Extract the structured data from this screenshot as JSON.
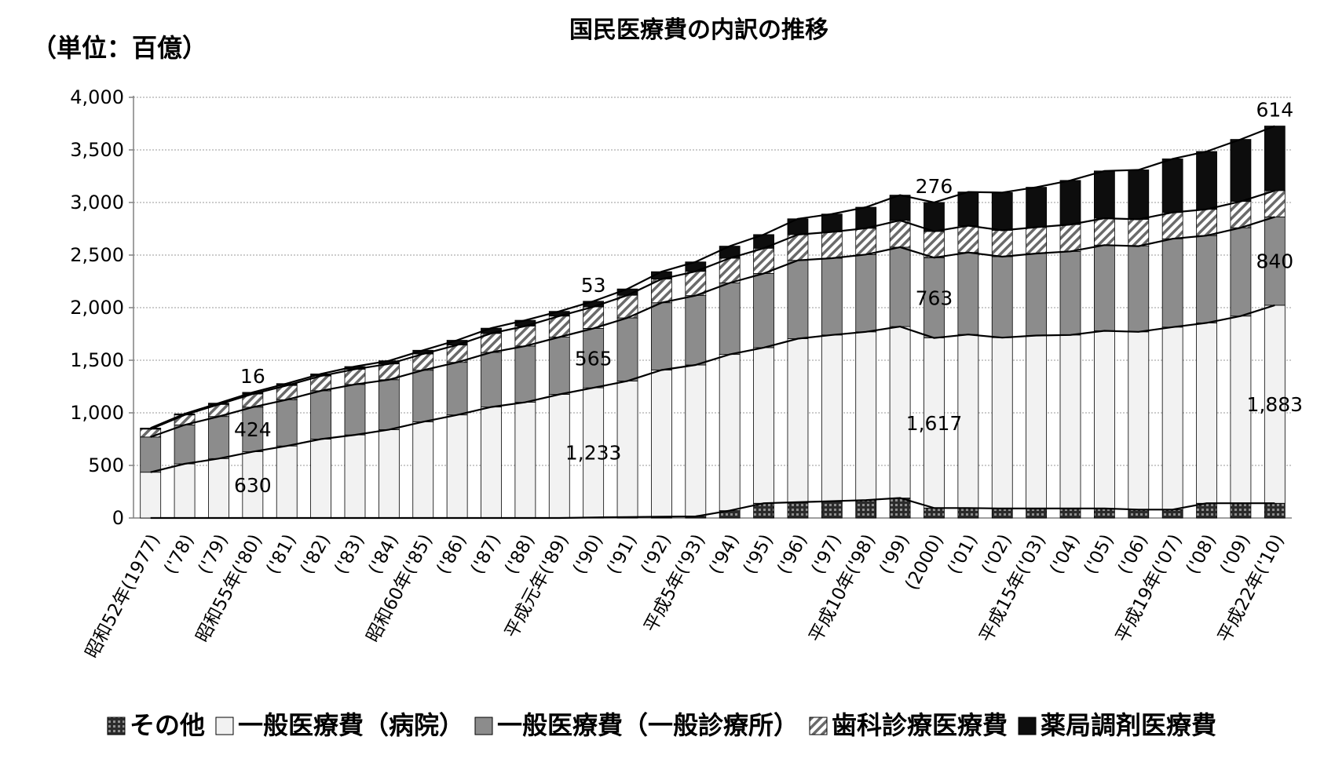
{
  "chart_data": {
    "type": "bar",
    "stacked": true,
    "title": "国民医療費の内訳の推移",
    "unit_label": "（単位：百億）",
    "ylim": [
      0,
      4000
    ],
    "yticks": [
      0,
      500,
      1000,
      1500,
      2000,
      2500,
      3000,
      3500,
      4000
    ],
    "ytick_labels": [
      "0",
      "500",
      "1,000",
      "1,500",
      "2,000",
      "2,500",
      "3,000",
      "3,500",
      "4,000"
    ],
    "grid": true,
    "legend_position": "bottom",
    "categories": [
      "昭和52年(1977)",
      "('78)",
      "('79)",
      "昭和55年('80)",
      "('81)",
      "('82)",
      "('83)",
      "('84)",
      "昭和60年('85)",
      "('86)",
      "('87)",
      "('88)",
      "平成元年('89)",
      "('90)",
      "('91)",
      "('92)",
      "平成5年('93)",
      "('94)",
      "('95)",
      "('96)",
      "('97)",
      "平成10年('98)",
      "('99)",
      "(2000)",
      "('01)",
      "('02)",
      "平成15年('03)",
      "('04)",
      "('05)",
      "('06)",
      "平成19年('07)",
      "('08)",
      "('09)",
      "平成22年('10)"
    ],
    "series": [
      {
        "name": "その他",
        "color": "#4a4a4a",
        "pattern": "dots",
        "values": [
          0,
          0,
          0,
          0,
          0,
          0,
          0,
          0,
          0,
          0,
          0,
          0,
          0,
          5,
          8,
          12,
          15,
          70,
          140,
          150,
          160,
          170,
          190,
          95,
          95,
          90,
          90,
          90,
          90,
          80,
          80,
          140,
          140,
          140
        ]
      },
      {
        "name": "一般医療費（病院）",
        "color": "#f2f2f2",
        "pattern": "none",
        "values": [
          435,
          515,
          565,
          630,
          685,
          750,
          790,
          840,
          915,
          980,
          1055,
          1100,
          1175,
          1233,
          1295,
          1395,
          1440,
          1485,
          1480,
          1555,
          1580,
          1600,
          1630,
          1617,
          1650,
          1625,
          1645,
          1650,
          1690,
          1690,
          1735,
          1715,
          1780,
          1883
        ]
      },
      {
        "name": "一般医療費（一般診療所）",
        "color": "#8c8c8c",
        "pattern": "none",
        "values": [
          335,
          370,
          400,
          424,
          440,
          460,
          480,
          475,
          490,
          500,
          520,
          535,
          545,
          565,
          600,
          640,
          660,
          680,
          705,
          745,
          730,
          735,
          755,
          763,
          780,
          770,
          780,
          795,
          815,
          815,
          840,
          830,
          840,
          840
        ]
      },
      {
        "name": "歯科診療医療費",
        "color": "#ffffff",
        "pattern": "hatch",
        "values": [
          75,
          95,
          115,
          125,
          135,
          140,
          145,
          150,
          155,
          165,
          180,
          190,
          200,
          205,
          215,
          225,
          230,
          235,
          240,
          245,
          250,
          250,
          255,
          250,
          255,
          250,
          250,
          255,
          255,
          255,
          250,
          250,
          250,
          250
        ]
      },
      {
        "name": "薬局調剤医療費",
        "color": "#0d0d0d",
        "pattern": "none",
        "values": [
          10,
          10,
          12,
          16,
          18,
          20,
          25,
          30,
          35,
          45,
          50,
          55,
          45,
          53,
          60,
          70,
          90,
          115,
          130,
          150,
          170,
          200,
          240,
          276,
          320,
          360,
          380,
          420,
          450,
          470,
          510,
          550,
          590,
          614
        ]
      }
    ],
    "data_labels": [
      {
        "category_index": 3,
        "series_index": 1,
        "text": "630"
      },
      {
        "category_index": 3,
        "series_index": 2,
        "text": "424"
      },
      {
        "category_index": 3,
        "series_index": 4,
        "text": "16"
      },
      {
        "category_index": 13,
        "series_index": 1,
        "text": "1,233"
      },
      {
        "category_index": 13,
        "series_index": 2,
        "text": "565"
      },
      {
        "category_index": 13,
        "series_index": 4,
        "text": "53"
      },
      {
        "category_index": 23,
        "series_index": 1,
        "text": "1,617"
      },
      {
        "category_index": 23,
        "series_index": 2,
        "text": "763"
      },
      {
        "category_index": 23,
        "series_index": 4,
        "text": "276"
      },
      {
        "category_index": 33,
        "series_index": 1,
        "text": "1,883"
      },
      {
        "category_index": 33,
        "series_index": 2,
        "text": "840"
      },
      {
        "category_index": 33,
        "series_index": 4,
        "text": "614"
      }
    ]
  }
}
